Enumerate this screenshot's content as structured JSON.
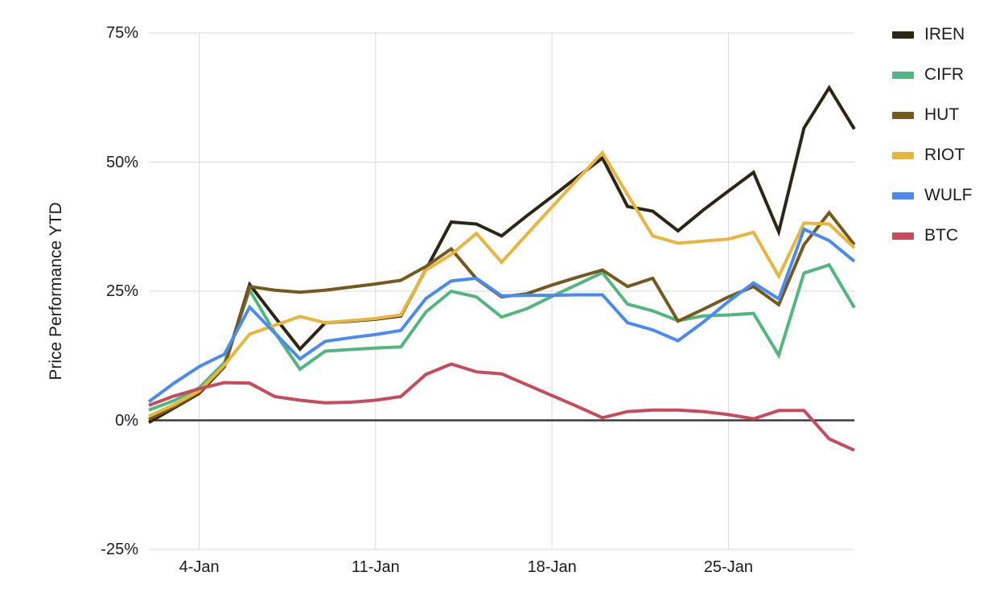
{
  "chart_data": {
    "type": "line",
    "title": "",
    "ylabel": "Price Performance YTD",
    "xlabel": "",
    "grid": true,
    "legend_position": "right-top",
    "ylim": [
      -25,
      75
    ],
    "zero_line_color": "#3b3b3b",
    "gridline_color": "#d9d9d9",
    "y_ticks": [
      {
        "label": "75%",
        "value": 75
      },
      {
        "label": "50%",
        "value": 50
      },
      {
        "label": "25%",
        "value": 25
      },
      {
        "label": "0%",
        "value": 0
      },
      {
        "label": "-25%",
        "value": -25
      }
    ],
    "x_tick_labels": [
      "4-Jan",
      "11-Jan",
      "18-Jan",
      "25-Jan"
    ],
    "x_tick_indices": [
      2,
      9,
      16,
      23
    ],
    "x": [
      "2-Jan",
      "3-Jan",
      "4-Jan",
      "5-Jan",
      "6-Jan",
      "7-Jan",
      "8-Jan",
      "9-Jan",
      "10-Jan",
      "11-Jan",
      "12-Jan",
      "13-Jan",
      "14-Jan",
      "15-Jan",
      "16-Jan",
      "17-Jan",
      "18-Jan",
      "19-Jan",
      "20-Jan",
      "21-Jan",
      "22-Jan",
      "23-Jan",
      "24-Jan",
      "25-Jan",
      "26-Jan",
      "27-Jan",
      "28-Jan",
      "29-Jan",
      "30-Jan"
    ],
    "series": [
      {
        "name": "IREN",
        "color": "#2e2614",
        "values": [
          -0.4,
          2.4,
          5.2,
          10.4,
          26.3,
          20.0,
          13.8,
          18.9,
          19.2,
          19.6,
          20.2,
          29.2,
          38.4,
          38.0,
          35.7,
          39.6,
          43.3,
          47.1,
          50.8,
          41.4,
          40.5,
          36.7,
          40.7,
          44.4,
          48.0,
          36.5,
          56.6,
          64.4,
          56.4
        ]
      },
      {
        "name": "CIFR",
        "color": "#52b77e",
        "values": [
          2.0,
          3.8,
          6.3,
          11.2,
          25.2,
          17.0,
          9.9,
          13.4,
          13.7,
          14.0,
          14.2,
          21.0,
          25.0,
          23.9,
          20.0,
          21.6,
          24.0,
          26.3,
          28.6,
          22.5,
          21.2,
          19.3,
          20.2,
          20.4,
          20.7,
          12.6,
          28.5,
          30.1,
          21.8
        ]
      },
      {
        "name": "HUT",
        "color": "#76591c",
        "values": [
          0.2,
          2.6,
          5.4,
          10.5,
          25.9,
          25.2,
          24.8,
          25.2,
          25.8,
          26.4,
          27.1,
          29.8,
          33.2,
          27.4,
          23.9,
          24.5,
          26.2,
          27.7,
          29.1,
          25.9,
          27.5,
          19.2,
          21.5,
          23.9,
          25.9,
          22.4,
          34.0,
          40.2,
          34.0
        ]
      },
      {
        "name": "RIOT",
        "color": "#e9b53d",
        "values": [
          0.8,
          3.0,
          5.7,
          10.7,
          16.7,
          18.4,
          20.1,
          18.9,
          19.3,
          19.7,
          20.4,
          29.1,
          32.1,
          36.2,
          30.6,
          36.0,
          41.3,
          46.6,
          51.8,
          43.7,
          35.7,
          34.3,
          34.7,
          35.1,
          36.4,
          27.9,
          38.2,
          38.0,
          33.4
        ]
      },
      {
        "name": "WULF",
        "color": "#4a8af4",
        "values": [
          3.6,
          7.2,
          10.4,
          12.8,
          21.9,
          16.9,
          11.9,
          15.3,
          16.0,
          16.6,
          17.4,
          23.6,
          27.0,
          27.5,
          24.1,
          24.2,
          24.2,
          24.3,
          24.3,
          18.9,
          17.5,
          15.4,
          19.0,
          23.0,
          26.6,
          23.5,
          37.0,
          34.8,
          30.8
        ]
      },
      {
        "name": "BTC",
        "color": "#c94a5a",
        "values": [
          2.9,
          4.7,
          6.1,
          7.3,
          7.2,
          4.6,
          3.9,
          3.4,
          3.5,
          3.9,
          4.6,
          8.9,
          10.9,
          9.4,
          9.0,
          6.9,
          4.8,
          2.7,
          0.5,
          1.7,
          2.0,
          2.0,
          1.7,
          1.1,
          0.3,
          1.9,
          1.9,
          -3.6,
          -5.8
        ]
      }
    ]
  }
}
